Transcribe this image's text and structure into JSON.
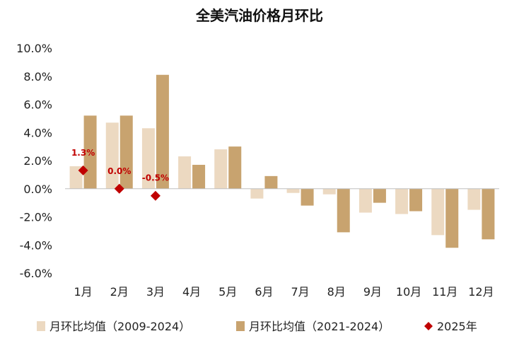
{
  "colors": {
    "series1": "#ecd9c1",
    "series2": "#c8a36f",
    "series3": "#c00000",
    "axis": "#bfbfbf"
  },
  "chart_data": {
    "type": "bar",
    "title": "全美汽油价格月环比",
    "categories": [
      "1月",
      "2月",
      "3月",
      "4月",
      "5月",
      "6月",
      "7月",
      "8月",
      "9月",
      "10月",
      "11月",
      "12月"
    ],
    "ylim": [
      -6.0,
      10.0
    ],
    "yticks": [
      "10.0%",
      "8.0%",
      "6.0%",
      "4.0%",
      "2.0%",
      "0.0%",
      "-2.0%",
      "-4.0%",
      "-6.0%"
    ],
    "grid": false,
    "legend_position": "bottom",
    "series": [
      {
        "name": "月环比均值（2009-2024）",
        "type": "bar",
        "values": [
          1.6,
          4.7,
          4.3,
          2.3,
          2.8,
          -0.7,
          -0.3,
          -0.4,
          -1.7,
          -1.8,
          -3.3,
          -1.5
        ]
      },
      {
        "name": "月环比均值（2021-2024）",
        "type": "bar",
        "values": [
          5.2,
          5.2,
          8.1,
          1.7,
          3.0,
          0.9,
          -1.2,
          -3.1,
          -1.0,
          -1.6,
          -4.2,
          -3.6
        ]
      },
      {
        "name": "2025年",
        "type": "scatter",
        "marker": "diamond",
        "values": [
          1.3,
          0.0,
          -0.5
        ],
        "labels": [
          "1.3%",
          "0.0%",
          "-0.5%"
        ]
      }
    ]
  }
}
